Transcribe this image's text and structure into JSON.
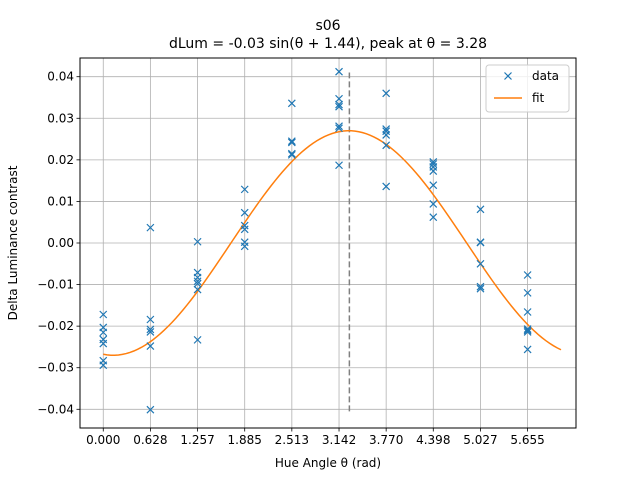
{
  "chart_data": {
    "type": "scatter",
    "title": "s06",
    "subtitle": "dLum = -0.03 sin(θ + 1.44), peak at θ = 3.28",
    "xlabel": "Hue Angle θ (rad)",
    "ylabel": "Delta Luminance contrast",
    "xlim": [
      -0.31,
      6.3
    ],
    "ylim": [
      -0.0445,
      0.0445
    ],
    "x_ticks": [
      0.0,
      0.628,
      1.257,
      1.885,
      2.513,
      3.142,
      3.77,
      4.398,
      5.027,
      5.655
    ],
    "x_tick_labels": [
      "0.000",
      "0.628",
      "1.257",
      "1.885",
      "2.513",
      "3.142",
      "3.770",
      "4.398",
      "5.027",
      "5.655"
    ],
    "y_ticks": [
      -0.04,
      -0.03,
      -0.02,
      -0.01,
      0.0,
      0.01,
      0.02,
      0.03,
      0.04
    ],
    "y_tick_labels": [
      "−0.04",
      "−0.03",
      "−0.02",
      "−0.01",
      "0.00",
      "0.01",
      "0.02",
      "0.03",
      "0.04"
    ],
    "grid": true,
    "legend": "top-right",
    "colors": {
      "data": "#1f77b4",
      "fit": "#ff7f0e",
      "peak_line": "#808080"
    },
    "series": [
      {
        "name": "data",
        "kind": "scatter",
        "marker": "x",
        "points": [
          [
            0.0,
            -0.0172
          ],
          [
            0.0,
            -0.0203
          ],
          [
            0.0,
            -0.0215
          ],
          [
            0.0,
            -0.0232
          ],
          [
            0.0,
            -0.0242
          ],
          [
            0.0,
            -0.0283
          ],
          [
            0.0,
            -0.0294
          ],
          [
            0.628,
            0.0037
          ],
          [
            0.628,
            -0.0184
          ],
          [
            0.628,
            -0.0208
          ],
          [
            0.628,
            -0.0214
          ],
          [
            0.628,
            -0.0248
          ],
          [
            0.628,
            -0.0401
          ],
          [
            1.257,
            0.0003
          ],
          [
            1.257,
            -0.0071
          ],
          [
            1.257,
            -0.0083
          ],
          [
            1.257,
            -0.0092
          ],
          [
            1.257,
            -0.0098
          ],
          [
            1.257,
            -0.0112
          ],
          [
            1.257,
            -0.0233
          ],
          [
            1.885,
            0.0129
          ],
          [
            1.885,
            0.0073
          ],
          [
            1.885,
            0.0042
          ],
          [
            1.885,
            0.0033
          ],
          [
            1.885,
            0.0002
          ],
          [
            1.885,
            -0.0008
          ],
          [
            2.513,
            0.0336
          ],
          [
            2.513,
            0.0245
          ],
          [
            2.513,
            0.0242
          ],
          [
            2.513,
            0.0215
          ],
          [
            2.513,
            0.0212
          ],
          [
            3.142,
            0.0412
          ],
          [
            3.142,
            0.0347
          ],
          [
            3.142,
            0.0333
          ],
          [
            3.142,
            0.0328
          ],
          [
            3.142,
            0.0281
          ],
          [
            3.142,
            0.0276
          ],
          [
            3.142,
            0.0187
          ],
          [
            3.77,
            0.036
          ],
          [
            3.77,
            0.0274
          ],
          [
            3.77,
            0.0269
          ],
          [
            3.77,
            0.026
          ],
          [
            3.77,
            0.0235
          ],
          [
            3.77,
            0.0136
          ],
          [
            4.398,
            0.0195
          ],
          [
            4.398,
            0.019
          ],
          [
            4.398,
            0.0183
          ],
          [
            4.398,
            0.0173
          ],
          [
            4.398,
            0.0139
          ],
          [
            4.398,
            0.0094
          ],
          [
            4.398,
            0.0062
          ],
          [
            5.027,
            0.0081
          ],
          [
            5.027,
            0.0002
          ],
          [
            5.027,
            0.0001
          ],
          [
            5.027,
            -0.005
          ],
          [
            5.027,
            -0.0105
          ],
          [
            5.027,
            -0.011
          ],
          [
            5.655,
            -0.0077
          ],
          [
            5.655,
            -0.012
          ],
          [
            5.655,
            -0.0166
          ],
          [
            5.655,
            -0.0207
          ],
          [
            5.655,
            -0.021
          ],
          [
            5.655,
            -0.0214
          ],
          [
            5.655,
            -0.0256
          ]
        ]
      },
      {
        "name": "fit",
        "kind": "line",
        "x_range": [
          0.0,
          6.1
        ],
        "amplitude": -0.027,
        "phase": 1.44
      }
    ],
    "annotations": [
      {
        "type": "vline",
        "x": 3.28,
        "y_range": [
          -0.0405,
          0.041
        ],
        "style": "dashed"
      }
    ]
  }
}
